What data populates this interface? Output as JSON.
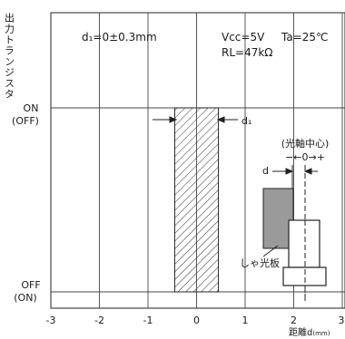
{
  "chart_data": {
    "type": "line",
    "ylabel": "出力トランジスタ",
    "xlabel": "距離d",
    "xlabel_unit": "(mm)",
    "xlim": [
      -3,
      3
    ],
    "xticks": [
      -3,
      -2,
      -1,
      0,
      1,
      2,
      3
    ],
    "tick_labels": [
      "-3",
      "-2",
      "-1",
      "0",
      "1",
      "2",
      "3"
    ],
    "y_levels": [
      {
        "label": "ON",
        "sub": "(OFF)",
        "value": 1
      },
      {
        "label": "OFF",
        "sub": "(ON)",
        "value": 0
      }
    ],
    "grid": true,
    "annotations": {
      "d1_condition": "d₁=0±0.3mm",
      "vcc": "Vcc=5V",
      "ta": "Ta=25℃",
      "rl": "RL=47kΩ",
      "d1_marker": "d₁",
      "axis_center": "(光軸中心)",
      "axis_dir": "−←0→+",
      "d_marker": "d",
      "shield": "しゃ光板"
    },
    "transition_band": {
      "x_from": -0.45,
      "x_to": 0.45
    }
  }
}
